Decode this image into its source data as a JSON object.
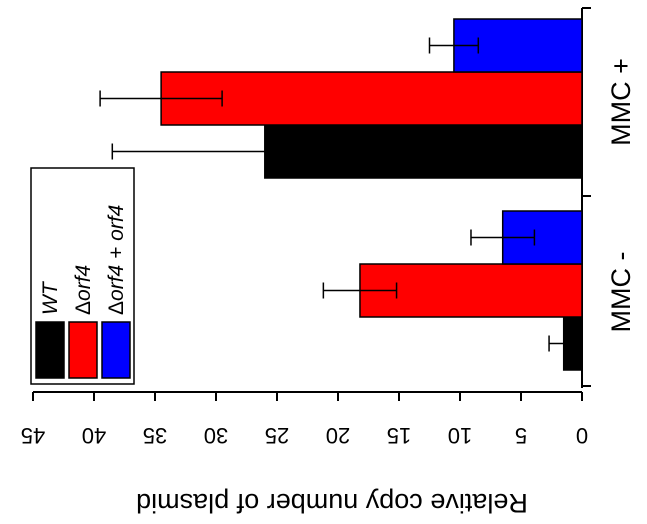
{
  "chart_data": {
    "type": "bar",
    "orientation": "horizontal-rotated",
    "categories": [
      "MMC -",
      "MMC +"
    ],
    "series": [
      {
        "name": "WT",
        "color": "#000000",
        "values": [
          1.5,
          26
        ],
        "errors": [
          1.2,
          12.5
        ]
      },
      {
        "name": "Δorf4",
        "color": "#ff0000",
        "values": [
          18.2,
          34.5
        ],
        "errors": [
          3,
          5
        ]
      },
      {
        "name": "Δorf4 + orf4",
        "color": "#0000ff",
        "values": [
          6.5,
          10.5
        ],
        "errors": [
          2.6,
          2
        ]
      }
    ],
    "ylabel": "Relative copy number of plasmid",
    "xlabel": "",
    "ylim": [
      0,
      45
    ],
    "yticks": [
      "0",
      "5",
      "10",
      "15",
      "20",
      "25",
      "30",
      "35",
      "40",
      "45"
    ],
    "legend": {
      "placement": "top-left",
      "entries": [
        {
          "prefix": "",
          "text": "WT"
        },
        {
          "prefix": "Δ",
          "text": "orf4"
        },
        {
          "prefix": "Δ",
          "text": "orf4 + orf4"
        }
      ]
    },
    "grid": false
  }
}
